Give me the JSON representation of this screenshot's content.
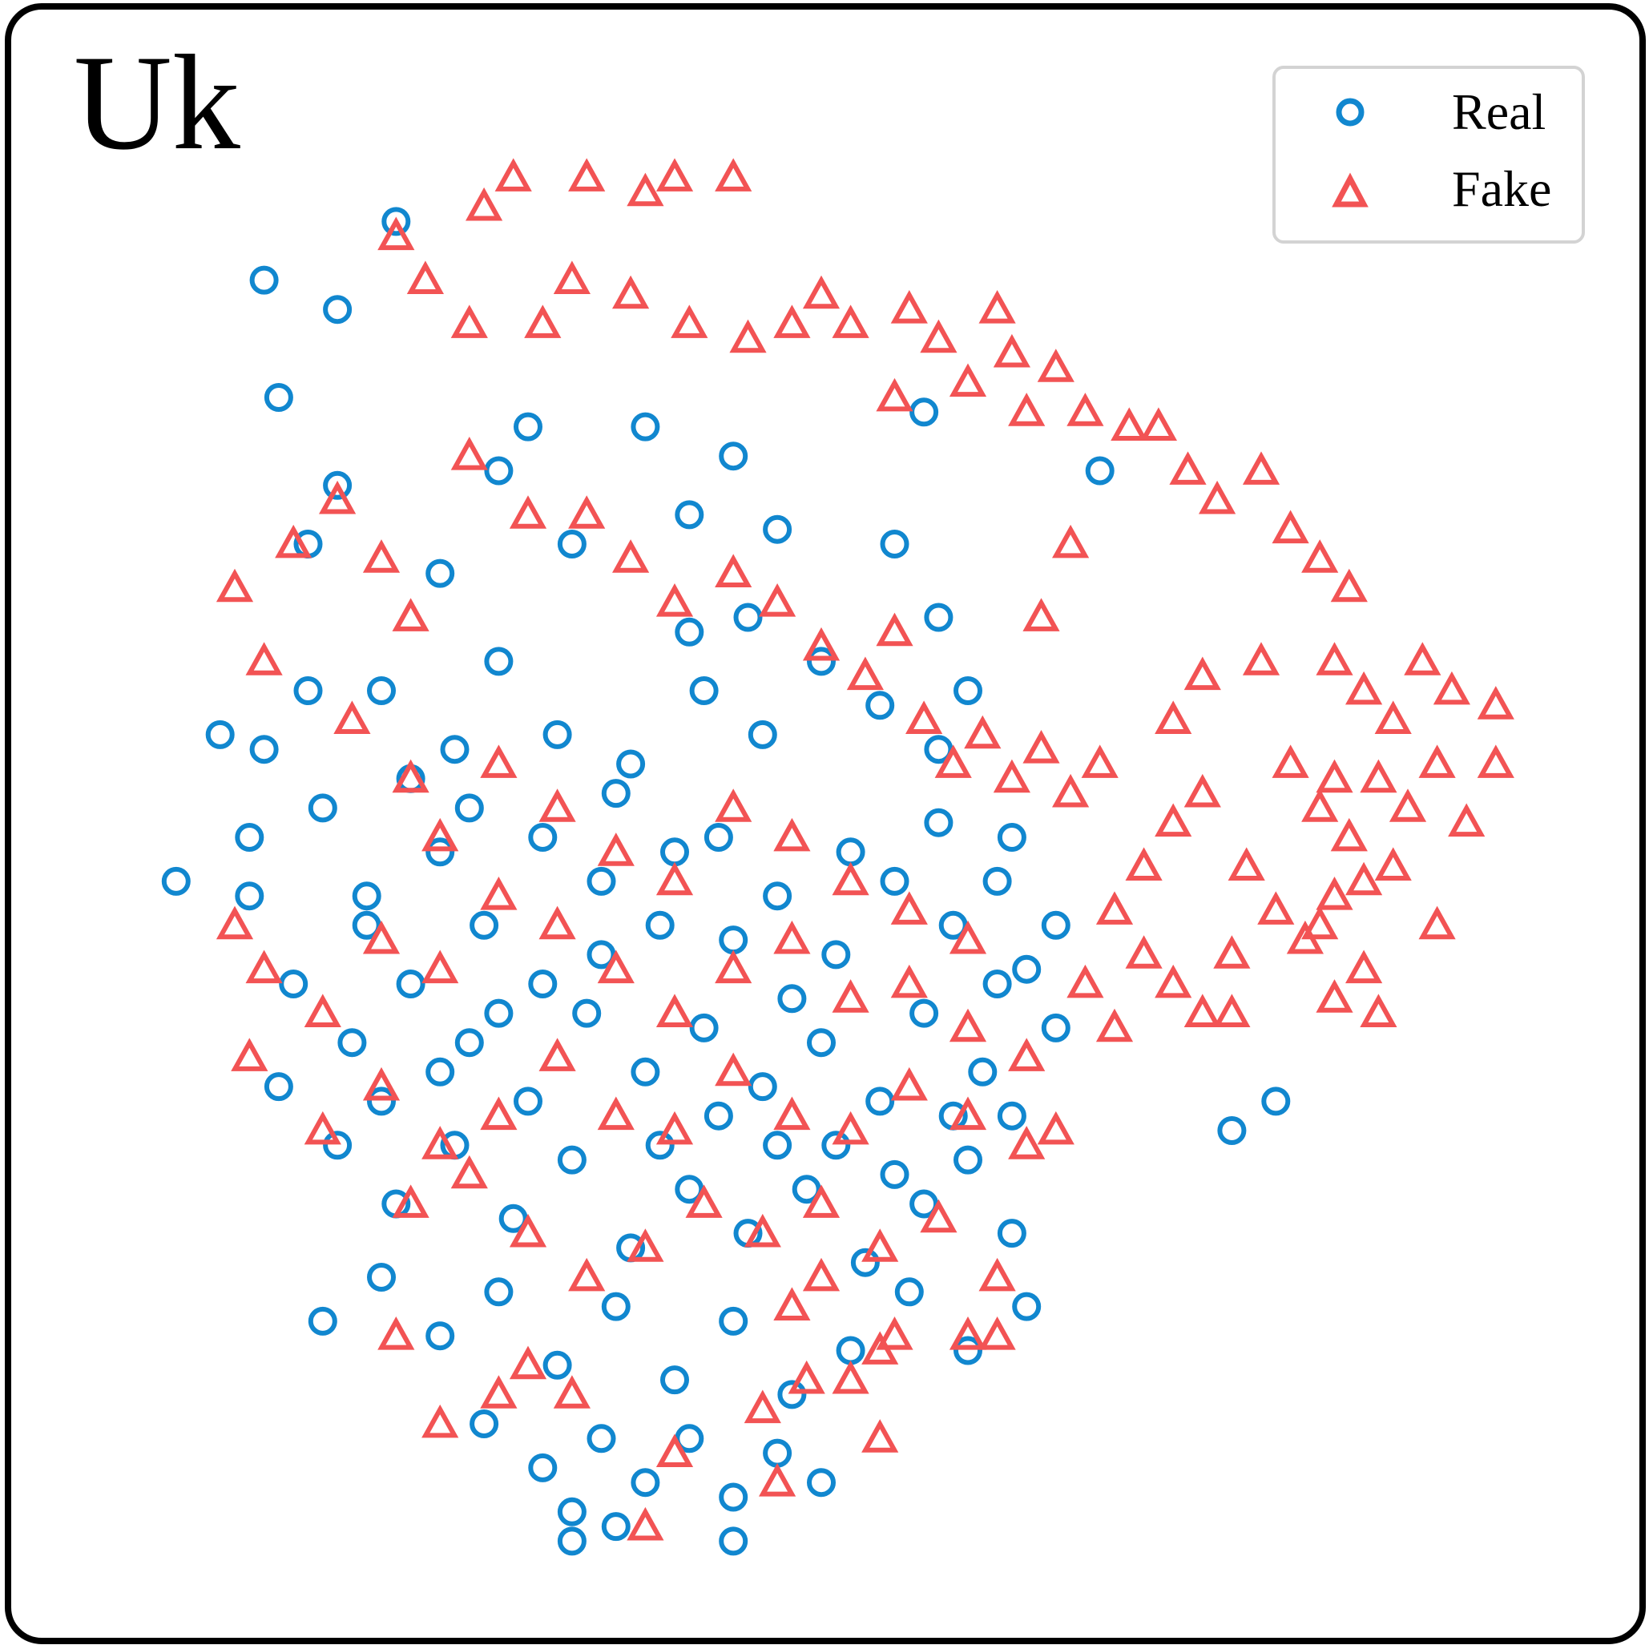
{
  "panel": {
    "label": "Uk"
  },
  "colors": {
    "real": "#1187cf",
    "fake": "#f25354",
    "frame": "#000000",
    "legend_border": "#d3d3d3"
  },
  "chart_data": {
    "type": "scatter",
    "title": "",
    "xlabel": "",
    "ylabel": "",
    "xlim": [
      0,
      100
    ],
    "ylim": [
      0,
      100
    ],
    "grid": false,
    "axes_visible": false,
    "legend_position": "top-right",
    "series": [
      {
        "name": "Real",
        "marker": "circle-open",
        "color": "#1187cf",
        "points": [
          [
            13,
            80
          ],
          [
            17,
            86
          ],
          [
            12,
            88
          ],
          [
            21,
            92
          ],
          [
            30,
            78
          ],
          [
            28,
            75
          ],
          [
            33,
            70
          ],
          [
            38,
            78
          ],
          [
            41,
            72
          ],
          [
            47,
            71
          ],
          [
            55,
            70
          ],
          [
            58,
            65
          ],
          [
            15,
            60
          ],
          [
            9,
            57
          ],
          [
            20,
            60
          ],
          [
            25,
            56
          ],
          [
            28,
            62
          ],
          [
            32,
            57
          ],
          [
            37,
            55
          ],
          [
            42,
            60
          ],
          [
            46,
            57
          ],
          [
            50,
            62
          ],
          [
            54,
            59
          ],
          [
            58,
            56
          ],
          [
            60,
            60
          ],
          [
            11,
            50
          ],
          [
            16,
            52
          ],
          [
            19,
            46
          ],
          [
            24,
            49
          ],
          [
            27,
            44
          ],
          [
            31,
            50
          ],
          [
            35,
            47
          ],
          [
            39,
            44
          ],
          [
            43,
            50
          ],
          [
            47,
            46
          ],
          [
            51,
            42
          ],
          [
            55,
            47
          ],
          [
            59,
            44
          ],
          [
            63,
            50
          ],
          [
            62,
            40
          ],
          [
            6,
            47
          ],
          [
            14,
            40
          ],
          [
            18,
            36
          ],
          [
            22,
            40
          ],
          [
            26,
            36
          ],
          [
            30,
            32
          ],
          [
            34,
            38
          ],
          [
            38,
            34
          ],
          [
            42,
            37
          ],
          [
            46,
            33
          ],
          [
            50,
            36
          ],
          [
            54,
            32
          ],
          [
            57,
            38
          ],
          [
            61,
            34
          ],
          [
            64,
            41
          ],
          [
            66,
            37
          ],
          [
            13,
            33
          ],
          [
            17,
            29
          ],
          [
            21,
            25
          ],
          [
            25,
            29
          ],
          [
            29,
            24
          ],
          [
            33,
            28
          ],
          [
            37,
            22
          ],
          [
            41,
            26
          ],
          [
            45,
            23
          ],
          [
            49,
            26
          ],
          [
            53,
            21
          ],
          [
            57,
            25
          ],
          [
            60,
            28
          ],
          [
            63,
            23
          ],
          [
            16,
            17
          ],
          [
            20,
            20
          ],
          [
            24,
            16
          ],
          [
            28,
            19
          ],
          [
            32,
            14
          ],
          [
            36,
            18
          ],
          [
            40,
            13
          ],
          [
            44,
            17
          ],
          [
            48,
            12
          ],
          [
            52,
            15
          ],
          [
            56,
            19
          ],
          [
            60,
            15
          ],
          [
            64,
            18
          ],
          [
            27,
            10
          ],
          [
            31,
            7
          ],
          [
            33,
            4
          ],
          [
            35,
            9
          ],
          [
            38,
            6
          ],
          [
            41,
            9
          ],
          [
            44,
            5
          ],
          [
            47,
            8
          ],
          [
            50,
            6
          ],
          [
            33,
            2
          ],
          [
            36,
            3
          ],
          [
            44,
            2
          ],
          [
            78,
            30
          ],
          [
            81,
            32
          ],
          [
            69,
            75
          ],
          [
            57,
            79
          ],
          [
            44,
            76
          ],
          [
            11,
            46
          ],
          [
            12,
            56
          ],
          [
            24,
            68
          ],
          [
            17,
            74
          ],
          [
            15,
            70
          ],
          [
            36,
            53
          ],
          [
            40,
            49
          ],
          [
            44,
            43
          ],
          [
            48,
            39
          ],
          [
            52,
            49
          ],
          [
            26,
            52
          ],
          [
            22,
            54
          ],
          [
            19,
            44
          ],
          [
            31,
            40
          ],
          [
            35,
            42
          ],
          [
            39,
            29
          ],
          [
            43,
            31
          ],
          [
            47,
            29
          ],
          [
            51,
            29
          ],
          [
            55,
            27
          ],
          [
            59,
            31
          ],
          [
            63,
            31
          ],
          [
            20,
            32
          ],
          [
            24,
            34
          ],
          [
            28,
            38
          ],
          [
            58,
            51
          ],
          [
            62,
            47
          ],
          [
            66,
            44
          ],
          [
            41,
            64
          ],
          [
            45,
            65
          ]
        ]
      },
      {
        "name": "Fake",
        "marker": "triangle-open",
        "color": "#f25354",
        "points": [
          [
            21,
            91
          ],
          [
            27,
            93
          ],
          [
            29,
            95
          ],
          [
            34,
            95
          ],
          [
            38,
            94
          ],
          [
            40,
            95
          ],
          [
            44,
            95
          ],
          [
            23,
            88
          ],
          [
            26,
            85
          ],
          [
            31,
            85
          ],
          [
            33,
            88
          ],
          [
            37,
            87
          ],
          [
            41,
            85
          ],
          [
            45,
            84
          ],
          [
            48,
            85
          ],
          [
            50,
            87
          ],
          [
            52,
            85
          ],
          [
            56,
            86
          ],
          [
            60,
            81
          ],
          [
            63,
            83
          ],
          [
            66,
            82
          ],
          [
            68,
            79
          ],
          [
            71,
            78
          ],
          [
            73,
            78
          ],
          [
            75,
            75
          ],
          [
            77,
            73
          ],
          [
            80,
            75
          ],
          [
            82,
            71
          ],
          [
            84,
            69
          ],
          [
            86,
            67
          ],
          [
            85,
            62
          ],
          [
            87,
            60
          ],
          [
            89,
            58
          ],
          [
            91,
            62
          ],
          [
            93,
            60
          ],
          [
            82,
            55
          ],
          [
            84,
            52
          ],
          [
            86,
            50
          ],
          [
            88,
            54
          ],
          [
            90,
            52
          ],
          [
            92,
            55
          ],
          [
            79,
            48
          ],
          [
            81,
            45
          ],
          [
            83,
            43
          ],
          [
            85,
            46
          ],
          [
            87,
            47
          ],
          [
            70,
            45
          ],
          [
            72,
            48
          ],
          [
            74,
            51
          ],
          [
            76,
            53
          ],
          [
            68,
            40
          ],
          [
            70,
            37
          ],
          [
            72,
            42
          ],
          [
            74,
            40
          ],
          [
            76,
            38
          ],
          [
            78,
            42
          ],
          [
            85,
            39
          ],
          [
            87,
            41
          ],
          [
            88,
            38
          ],
          [
            14,
            70
          ],
          [
            10,
            67
          ],
          [
            12,
            62
          ],
          [
            17,
            73
          ],
          [
            20,
            69
          ],
          [
            22,
            65
          ],
          [
            26,
            76
          ],
          [
            30,
            72
          ],
          [
            34,
            72
          ],
          [
            37,
            69
          ],
          [
            40,
            66
          ],
          [
            44,
            68
          ],
          [
            47,
            66
          ],
          [
            50,
            63
          ],
          [
            53,
            61
          ],
          [
            55,
            64
          ],
          [
            57,
            58
          ],
          [
            59,
            55
          ],
          [
            61,
            57
          ],
          [
            63,
            54
          ],
          [
            65,
            56
          ],
          [
            67,
            53
          ],
          [
            69,
            55
          ],
          [
            18,
            58
          ],
          [
            22,
            54
          ],
          [
            24,
            50
          ],
          [
            28,
            55
          ],
          [
            32,
            52
          ],
          [
            36,
            49
          ],
          [
            40,
            47
          ],
          [
            44,
            52
          ],
          [
            48,
            50
          ],
          [
            52,
            47
          ],
          [
            56,
            45
          ],
          [
            60,
            43
          ],
          [
            10,
            44
          ],
          [
            12,
            41
          ],
          [
            16,
            38
          ],
          [
            20,
            43
          ],
          [
            24,
            41
          ],
          [
            28,
            46
          ],
          [
            32,
            44
          ],
          [
            36,
            41
          ],
          [
            40,
            38
          ],
          [
            44,
            41
          ],
          [
            48,
            43
          ],
          [
            52,
            39
          ],
          [
            56,
            40
          ],
          [
            60,
            37
          ],
          [
            64,
            35
          ],
          [
            11,
            35
          ],
          [
            16,
            30
          ],
          [
            20,
            33
          ],
          [
            24,
            29
          ],
          [
            28,
            31
          ],
          [
            32,
            35
          ],
          [
            36,
            31
          ],
          [
            40,
            30
          ],
          [
            44,
            34
          ],
          [
            48,
            31
          ],
          [
            52,
            30
          ],
          [
            56,
            33
          ],
          [
            60,
            31
          ],
          [
            64,
            29
          ],
          [
            22,
            25
          ],
          [
            26,
            27
          ],
          [
            30,
            23
          ],
          [
            34,
            20
          ],
          [
            38,
            22
          ],
          [
            42,
            25
          ],
          [
            46,
            23
          ],
          [
            50,
            25
          ],
          [
            54,
            22
          ],
          [
            58,
            24
          ],
          [
            62,
            20
          ],
          [
            66,
            30
          ],
          [
            62,
            16
          ],
          [
            48,
            18
          ],
          [
            50,
            20
          ],
          [
            52,
            13
          ],
          [
            54,
            15
          ],
          [
            28,
            12
          ],
          [
            30,
            14
          ],
          [
            33,
            12
          ],
          [
            40,
            8
          ],
          [
            46,
            11
          ],
          [
            49,
            13
          ],
          [
            54,
            9
          ],
          [
            55,
            16
          ],
          [
            38,
            3
          ],
          [
            47,
            6
          ],
          [
            21,
            16
          ],
          [
            24,
            10
          ],
          [
            60,
            16
          ],
          [
            55,
            80
          ],
          [
            58,
            84
          ],
          [
            62,
            86
          ],
          [
            64,
            79
          ],
          [
            67,
            70
          ],
          [
            65,
            65
          ],
          [
            78,
            38
          ],
          [
            96,
            59
          ],
          [
            96,
            55
          ],
          [
            94,
            51
          ],
          [
            89,
            48
          ],
          [
            85,
            54
          ],
          [
            76,
            61
          ],
          [
            74,
            58
          ],
          [
            80,
            62
          ],
          [
            92,
            44
          ],
          [
            84,
            44
          ]
        ]
      }
    ]
  }
}
